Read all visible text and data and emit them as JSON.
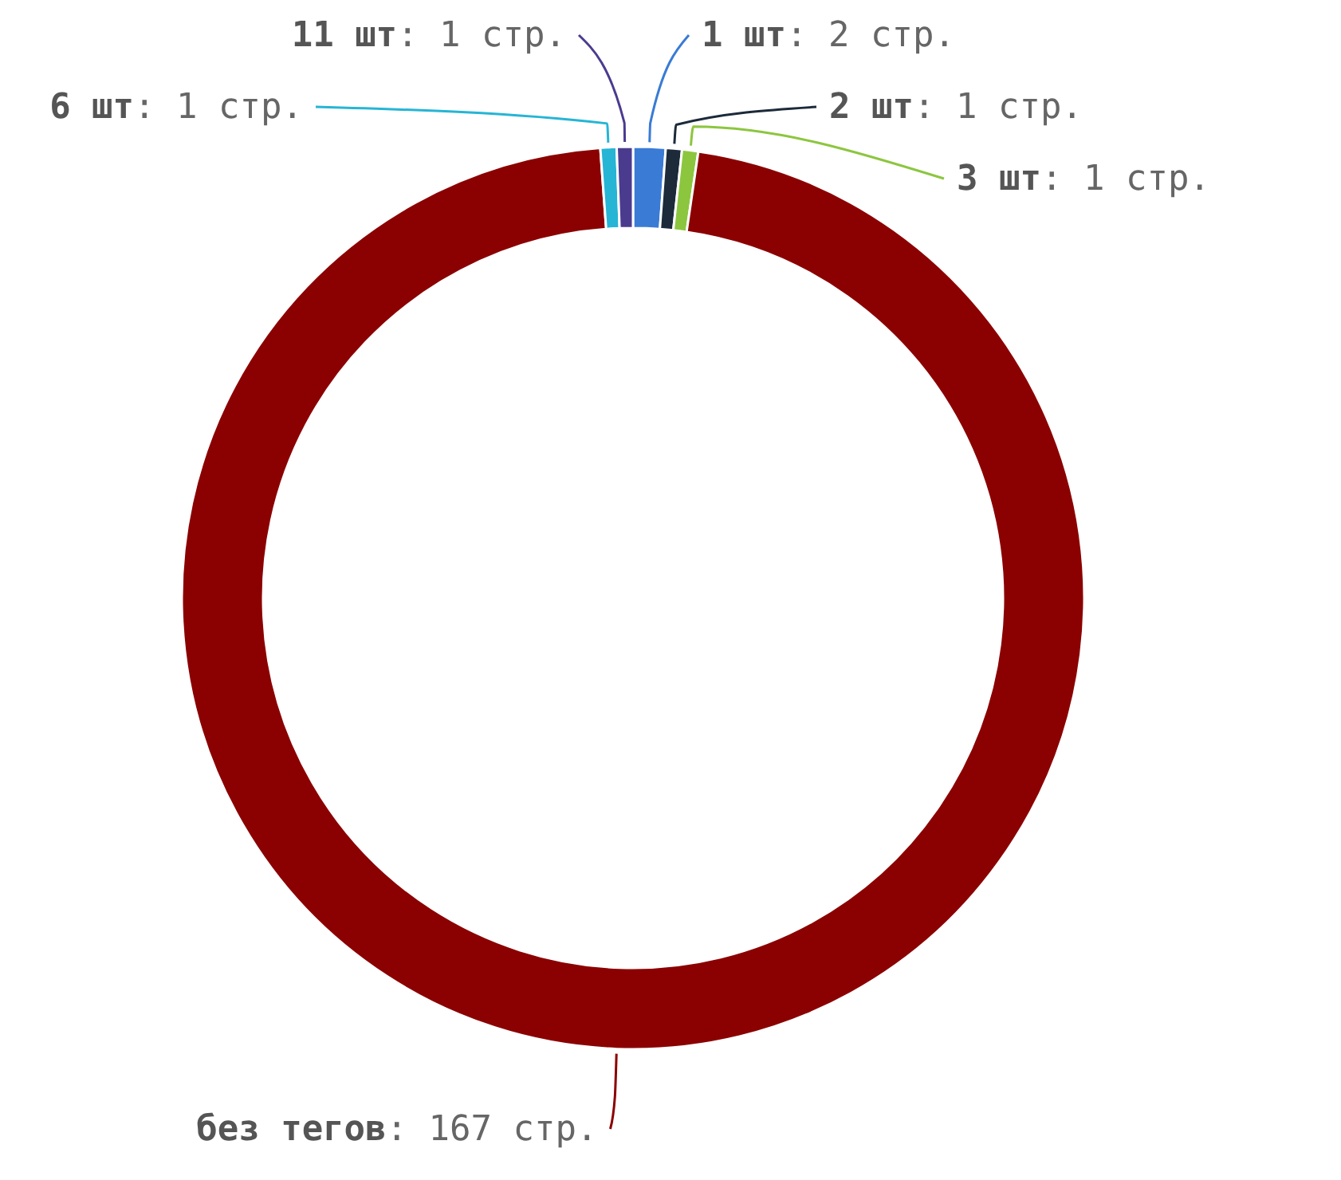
{
  "chart_data": {
    "type": "donut",
    "categories": [
      "1 шт",
      "2 шт",
      "3 шт",
      "без тегов",
      "6 шт",
      "11 шт"
    ],
    "values": [
      2,
      1,
      1,
      167,
      1,
      1
    ],
    "colors": [
      "#3a7bd5",
      "#1c2a3a",
      "#8cc63f",
      "#8b0000",
      "#26b5d5",
      "#4b3b8f"
    ],
    "value_labels": [
      ": 2 стр.",
      ": 1 стр.",
      ": 1 стр.",
      ": 167 стр.",
      ": 1 стр.",
      ": 1 стр."
    ]
  }
}
